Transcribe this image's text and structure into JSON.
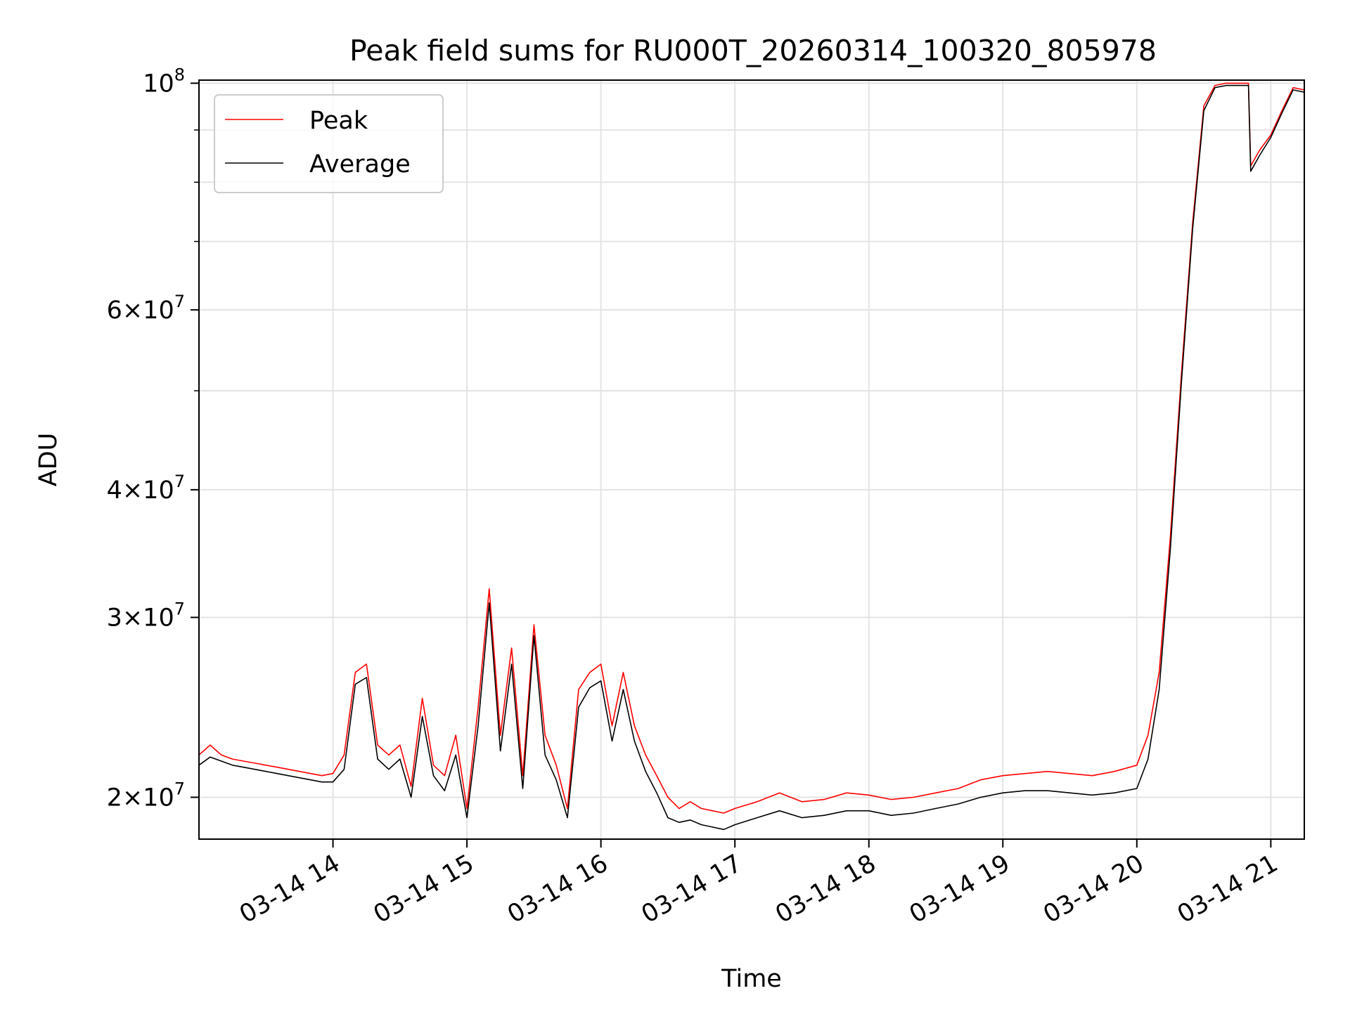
{
  "chart_data": {
    "type": "line",
    "title": "Peak field sums for RU000T_20260314_100320_805978",
    "xlabel": "Time",
    "ylabel": "ADU",
    "y_scale": "log",
    "grid": true,
    "legend_position": "upper-left",
    "xlim": [
      "2026-03-14 13:00",
      "2026-03-14 21:15"
    ],
    "ylim": [
      18200000,
      100700000
    ],
    "x_ticks": [
      {
        "value": "2026-03-14 14:00",
        "label": "03-14 14"
      },
      {
        "value": "2026-03-14 15:00",
        "label": "03-14 15"
      },
      {
        "value": "2026-03-14 16:00",
        "label": "03-14 16"
      },
      {
        "value": "2026-03-14 17:00",
        "label": "03-14 17"
      },
      {
        "value": "2026-03-14 18:00",
        "label": "03-14 18"
      },
      {
        "value": "2026-03-14 19:00",
        "label": "03-14 19"
      },
      {
        "value": "2026-03-14 20:00",
        "label": "03-14 20"
      },
      {
        "value": "2026-03-14 21:00",
        "label": "03-14 21"
      }
    ],
    "y_major_ticks": [
      {
        "value": 20000000,
        "mant": "2",
        "exp": "7"
      },
      {
        "value": 30000000,
        "mant": "3",
        "exp": "7"
      },
      {
        "value": 40000000,
        "mant": "4",
        "exp": "7"
      },
      {
        "value": 60000000,
        "mant": "6",
        "exp": "7"
      },
      {
        "value": 100000000,
        "mant": "",
        "exp": "8"
      }
    ],
    "y_minor_ticks": [
      50000000,
      70000000,
      80000000,
      90000000
    ],
    "series": [
      {
        "name": "Peak",
        "color": "#ff0000",
        "x": [
          "2026-03-14 13:00",
          "2026-03-14 13:05",
          "2026-03-14 13:10",
          "2026-03-14 13:15",
          "2026-03-14 13:20",
          "2026-03-14 13:25",
          "2026-03-14 13:30",
          "2026-03-14 13:35",
          "2026-03-14 13:40",
          "2026-03-14 13:45",
          "2026-03-14 13:50",
          "2026-03-14 13:55",
          "2026-03-14 14:00",
          "2026-03-14 14:05",
          "2026-03-14 14:10",
          "2026-03-14 14:15",
          "2026-03-14 14:20",
          "2026-03-14 14:25",
          "2026-03-14 14:30",
          "2026-03-14 14:35",
          "2026-03-14 14:40",
          "2026-03-14 14:45",
          "2026-03-14 14:50",
          "2026-03-14 14:55",
          "2026-03-14 15:00",
          "2026-03-14 15:05",
          "2026-03-14 15:10",
          "2026-03-14 15:15",
          "2026-03-14 15:20",
          "2026-03-14 15:25",
          "2026-03-14 15:30",
          "2026-03-14 15:35",
          "2026-03-14 15:40",
          "2026-03-14 15:45",
          "2026-03-14 15:50",
          "2026-03-14 15:55",
          "2026-03-14 16:00",
          "2026-03-14 16:05",
          "2026-03-14 16:10",
          "2026-03-14 16:15",
          "2026-03-14 16:20",
          "2026-03-14 16:25",
          "2026-03-14 16:30",
          "2026-03-14 16:35",
          "2026-03-14 16:40",
          "2026-03-14 16:45",
          "2026-03-14 16:50",
          "2026-03-14 16:55",
          "2026-03-14 17:00",
          "2026-03-14 17:10",
          "2026-03-14 17:20",
          "2026-03-14 17:30",
          "2026-03-14 17:40",
          "2026-03-14 17:50",
          "2026-03-14 18:00",
          "2026-03-14 18:10",
          "2026-03-14 18:20",
          "2026-03-14 18:30",
          "2026-03-14 18:40",
          "2026-03-14 18:50",
          "2026-03-14 19:00",
          "2026-03-14 19:10",
          "2026-03-14 19:20",
          "2026-03-14 19:30",
          "2026-03-14 19:40",
          "2026-03-14 19:50",
          "2026-03-14 20:00",
          "2026-03-14 20:05",
          "2026-03-14 20:10",
          "2026-03-14 20:15",
          "2026-03-14 20:20",
          "2026-03-14 20:25",
          "2026-03-14 20:30",
          "2026-03-14 20:35",
          "2026-03-14 20:40",
          "2026-03-14 20:45",
          "2026-03-14 20:50",
          "2026-03-14 20:51",
          "2026-03-14 20:55",
          "2026-03-14 21:00",
          "2026-03-14 21:05",
          "2026-03-14 21:10",
          "2026-03-14 21:15"
        ],
        "values": [
          22000000,
          22500000,
          22000000,
          21800000,
          21700000,
          21600000,
          21500000,
          21400000,
          21300000,
          21200000,
          21100000,
          21000000,
          21100000,
          22000000,
          26500000,
          27000000,
          22500000,
          22000000,
          22500000,
          20500000,
          25000000,
          21500000,
          21000000,
          23000000,
          19500000,
          24500000,
          32000000,
          23000000,
          28000000,
          21000000,
          29500000,
          23000000,
          21500000,
          19500000,
          25500000,
          26500000,
          27000000,
          23500000,
          26500000,
          23500000,
          22000000,
          21000000,
          20000000,
          19500000,
          19800000,
          19500000,
          19400000,
          19300000,
          19500000,
          19800000,
          20200000,
          19800000,
          19900000,
          20200000,
          20100000,
          19900000,
          20000000,
          20200000,
          20400000,
          20800000,
          21000000,
          21100000,
          21200000,
          21100000,
          21000000,
          21200000,
          21500000,
          23000000,
          26500000,
          36000000,
          52000000,
          73000000,
          95000000,
          99500000,
          100000000,
          100000000,
          100000000,
          83000000,
          86000000,
          89000000,
          94000000,
          99000000,
          98500000
        ]
      },
      {
        "name": "Average",
        "color": "#000000",
        "x": [
          "2026-03-14 13:00",
          "2026-03-14 13:05",
          "2026-03-14 13:10",
          "2026-03-14 13:15",
          "2026-03-14 13:20",
          "2026-03-14 13:25",
          "2026-03-14 13:30",
          "2026-03-14 13:35",
          "2026-03-14 13:40",
          "2026-03-14 13:45",
          "2026-03-14 13:50",
          "2026-03-14 13:55",
          "2026-03-14 14:00",
          "2026-03-14 14:05",
          "2026-03-14 14:10",
          "2026-03-14 14:15",
          "2026-03-14 14:20",
          "2026-03-14 14:25",
          "2026-03-14 14:30",
          "2026-03-14 14:35",
          "2026-03-14 14:40",
          "2026-03-14 14:45",
          "2026-03-14 14:50",
          "2026-03-14 14:55",
          "2026-03-14 15:00",
          "2026-03-14 15:05",
          "2026-03-14 15:10",
          "2026-03-14 15:15",
          "2026-03-14 15:20",
          "2026-03-14 15:25",
          "2026-03-14 15:30",
          "2026-03-14 15:35",
          "2026-03-14 15:40",
          "2026-03-14 15:45",
          "2026-03-14 15:50",
          "2026-03-14 15:55",
          "2026-03-14 16:00",
          "2026-03-14 16:05",
          "2026-03-14 16:10",
          "2026-03-14 16:15",
          "2026-03-14 16:20",
          "2026-03-14 16:25",
          "2026-03-14 16:30",
          "2026-03-14 16:35",
          "2026-03-14 16:40",
          "2026-03-14 16:45",
          "2026-03-14 16:50",
          "2026-03-14 16:55",
          "2026-03-14 17:00",
          "2026-03-14 17:10",
          "2026-03-14 17:20",
          "2026-03-14 17:30",
          "2026-03-14 17:40",
          "2026-03-14 17:50",
          "2026-03-14 18:00",
          "2026-03-14 18:10",
          "2026-03-14 18:20",
          "2026-03-14 18:30",
          "2026-03-14 18:40",
          "2026-03-14 18:50",
          "2026-03-14 19:00",
          "2026-03-14 19:10",
          "2026-03-14 19:20",
          "2026-03-14 19:30",
          "2026-03-14 19:40",
          "2026-03-14 19:50",
          "2026-03-14 20:00",
          "2026-03-14 20:05",
          "2026-03-14 20:10",
          "2026-03-14 20:15",
          "2026-03-14 20:20",
          "2026-03-14 20:25",
          "2026-03-14 20:30",
          "2026-03-14 20:35",
          "2026-03-14 20:40",
          "2026-03-14 20:45",
          "2026-03-14 20:50",
          "2026-03-14 20:51",
          "2026-03-14 20:55",
          "2026-03-14 21:00",
          "2026-03-14 21:05",
          "2026-03-14 21:10",
          "2026-03-14 21:15"
        ],
        "values": [
          21500000,
          21900000,
          21700000,
          21500000,
          21400000,
          21300000,
          21200000,
          21100000,
          21000000,
          20900000,
          20800000,
          20700000,
          20700000,
          21300000,
          25800000,
          26200000,
          21800000,
          21300000,
          21800000,
          20000000,
          24000000,
          21000000,
          20300000,
          22000000,
          19100000,
          23500000,
          31000000,
          22200000,
          27000000,
          20400000,
          28800000,
          22000000,
          20800000,
          19100000,
          24500000,
          25600000,
          26000000,
          22700000,
          25500000,
          22700000,
          21200000,
          20200000,
          19100000,
          18900000,
          19000000,
          18800000,
          18700000,
          18600000,
          18800000,
          19100000,
          19400000,
          19100000,
          19200000,
          19400000,
          19400000,
          19200000,
          19300000,
          19500000,
          19700000,
          20000000,
          20200000,
          20300000,
          20300000,
          20200000,
          20100000,
          20200000,
          20400000,
          21800000,
          25500000,
          35000000,
          51000000,
          72000000,
          94000000,
          99000000,
          99500000,
          99500000,
          99500000,
          82000000,
          85000000,
          88500000,
          93500000,
          98500000,
          98000000
        ]
      }
    ]
  }
}
